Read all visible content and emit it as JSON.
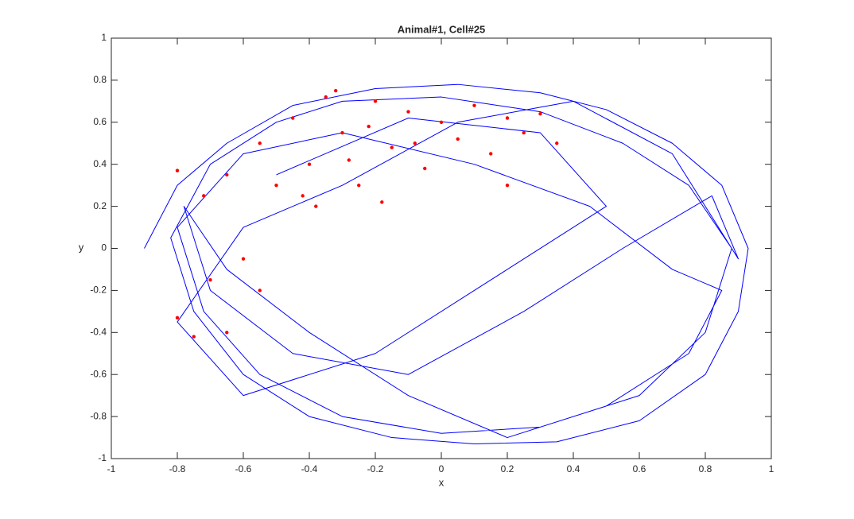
{
  "chart_data": {
    "type": "line",
    "title": "Animal#1, Cell#25",
    "xlabel": "x",
    "ylabel": "y",
    "xlim": [
      -1,
      1
    ],
    "ylim": [
      -1,
      1
    ],
    "xticks": [
      -1,
      -0.8,
      -0.6,
      -0.4,
      -0.2,
      0,
      0.2,
      0.4,
      0.6,
      0.8,
      1
    ],
    "yticks": [
      -1,
      -0.8,
      -0.6,
      -0.4,
      -0.2,
      0,
      0.2,
      0.4,
      0.6,
      0.8,
      1
    ],
    "series": [
      {
        "type": "line",
        "color": "#0000ff",
        "x": [
          -0.9,
          -0.8,
          -0.65,
          -0.45,
          -0.2,
          0.05,
          0.3,
          0.5,
          0.7,
          0.85,
          0.93,
          0.9,
          0.8,
          0.6,
          0.35,
          0.1,
          -0.15,
          -0.4,
          -0.6,
          -0.75,
          -0.82,
          -0.7,
          -0.5,
          -0.3,
          0,
          0.3,
          0.55,
          0.75,
          0.88,
          0.8,
          0.6,
          0.3,
          0,
          -0.3,
          -0.55,
          -0.72,
          -0.8,
          -0.6,
          -0.3,
          0.1,
          0.45,
          0.7,
          0.85,
          0.75,
          0.5,
          0.2,
          -0.1,
          -0.4,
          -0.65,
          -0.78,
          -0.7,
          -0.45,
          -0.1,
          0.25,
          0.55,
          0.82,
          0.9,
          0.7,
          0.4,
          0.05,
          -0.3,
          -0.6,
          -0.8,
          -0.6,
          -0.2,
          0.2,
          0.5,
          0.3,
          -0.1,
          -0.5
        ],
        "y": [
          0.0,
          0.3,
          0.5,
          0.68,
          0.76,
          0.78,
          0.74,
          0.66,
          0.5,
          0.3,
          0.0,
          -0.3,
          -0.6,
          -0.82,
          -0.92,
          -0.93,
          -0.9,
          -0.8,
          -0.6,
          -0.3,
          0.05,
          0.4,
          0.6,
          0.7,
          0.72,
          0.65,
          0.5,
          0.3,
          0.0,
          -0.4,
          -0.7,
          -0.85,
          -0.88,
          -0.8,
          -0.6,
          -0.3,
          0.1,
          0.45,
          0.55,
          0.4,
          0.2,
          -0.1,
          -0.2,
          -0.5,
          -0.75,
          -0.9,
          -0.7,
          -0.4,
          -0.1,
          0.2,
          -0.2,
          -0.5,
          -0.6,
          -0.3,
          0.0,
          0.25,
          -0.05,
          0.45,
          0.7,
          0.6,
          0.3,
          0.1,
          -0.35,
          -0.7,
          -0.5,
          -0.1,
          0.2,
          0.55,
          0.62,
          0.35
        ]
      },
      {
        "type": "scatter",
        "color": "#ff0000",
        "x": [
          -0.8,
          -0.72,
          -0.65,
          -0.55,
          -0.5,
          -0.45,
          -0.4,
          -0.35,
          -0.3,
          -0.25,
          -0.2,
          -0.15,
          -0.1,
          -0.05,
          0,
          0.05,
          0.1,
          0.15,
          0.2,
          0.25,
          0.3,
          -0.38,
          -0.28,
          -0.18,
          -0.08,
          -0.42,
          -0.32,
          -0.22,
          -0.6,
          -0.7,
          -0.8,
          -0.75,
          -0.65,
          -0.55,
          0.2,
          0.35
        ],
        "y": [
          0.37,
          0.25,
          0.35,
          0.5,
          0.3,
          0.62,
          0.4,
          0.72,
          0.55,
          0.3,
          0.7,
          0.48,
          0.65,
          0.38,
          0.6,
          0.52,
          0.68,
          0.45,
          0.62,
          0.55,
          0.64,
          0.2,
          0.42,
          0.22,
          0.5,
          0.25,
          0.75,
          0.58,
          -0.05,
          -0.15,
          -0.33,
          -0.42,
          -0.4,
          -0.2,
          0.3,
          0.5
        ]
      }
    ]
  }
}
